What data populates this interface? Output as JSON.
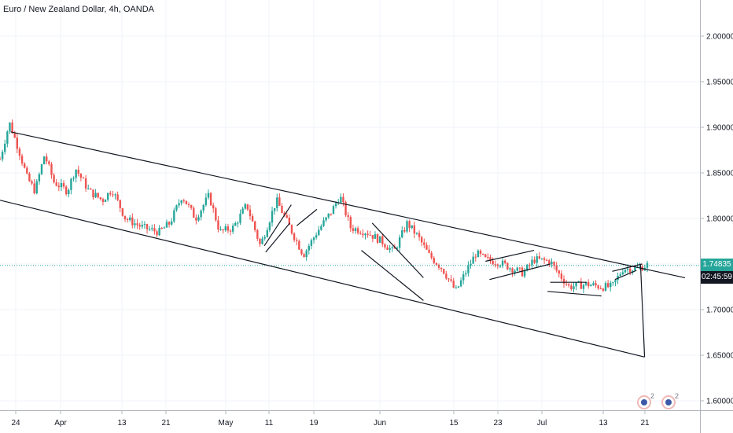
{
  "header": {
    "title": "Euro / New Zealand Dollar, 4h, OANDA"
  },
  "price_axis": {
    "ticks": [
      "2.00000",
      "1.95000",
      "1.90000",
      "1.85000",
      "1.80000",
      "1.75000",
      "1.70000",
      "1.65000",
      "1.60000"
    ],
    "tick_values": [
      2.0,
      1.95,
      1.9,
      1.85,
      1.8,
      1.75,
      1.7,
      1.65,
      1.6
    ],
    "last_price": "1.74835",
    "countdown": "02:45:59",
    "last_price_color": "#26a69a",
    "countdown_color": "#131722"
  },
  "time_axis": {
    "ticks": [
      "24",
      "Apr",
      "13",
      "21",
      "May",
      "11",
      "19",
      "Jun",
      "15",
      "23",
      "Jul",
      "13",
      "21"
    ]
  },
  "events": [
    {
      "label": "event-icon",
      "count": "2"
    },
    {
      "label": "event-icon",
      "count": "2"
    }
  ],
  "chart_data": {
    "type": "candlestick",
    "title": "Euro / New Zealand Dollar, 4h, OANDA",
    "ylim": [
      1.595,
      2.04
    ],
    "grid": true,
    "colors": {
      "up": "#26a69a",
      "down": "#ef5350",
      "trendline": "#131722",
      "price_line": "#26a69a"
    },
    "price_path": [
      {
        "t": 0.0,
        "p": 1.865
      },
      {
        "t": 0.7,
        "p": 1.905
      },
      {
        "t": 1.4,
        "p": 1.875
      },
      {
        "t": 2.0,
        "p": 1.845
      },
      {
        "t": 2.6,
        "p": 1.83
      },
      {
        "t": 3.3,
        "p": 1.87
      },
      {
        "t": 4.0,
        "p": 1.84
      },
      {
        "t": 5.0,
        "p": 1.83
      },
      {
        "t": 5.6,
        "p": 1.855
      },
      {
        "t": 6.6,
        "p": 1.83
      },
      {
        "t": 7.6,
        "p": 1.82
      },
      {
        "t": 8.3,
        "p": 1.832
      },
      {
        "t": 9.3,
        "p": 1.8
      },
      {
        "t": 10.6,
        "p": 1.79
      },
      {
        "t": 11.8,
        "p": 1.785
      },
      {
        "t": 12.6,
        "p": 1.795
      },
      {
        "t": 13.5,
        "p": 1.825
      },
      {
        "t": 14.5,
        "p": 1.8
      },
      {
        "t": 15.5,
        "p": 1.825
      },
      {
        "t": 16.3,
        "p": 1.785
      },
      {
        "t": 17.3,
        "p": 1.79
      },
      {
        "t": 18.3,
        "p": 1.815
      },
      {
        "t": 19.3,
        "p": 1.77
      },
      {
        "t": 20.5,
        "p": 1.82
      },
      {
        "t": 21.5,
        "p": 1.79
      },
      {
        "t": 22.5,
        "p": 1.76
      },
      {
        "t": 23.5,
        "p": 1.785
      },
      {
        "t": 24.6,
        "p": 1.808
      },
      {
        "t": 25.2,
        "p": 1.825
      },
      {
        "t": 26.0,
        "p": 1.79
      },
      {
        "t": 27.2,
        "p": 1.785
      },
      {
        "t": 28.3,
        "p": 1.775
      },
      {
        "t": 29.2,
        "p": 1.763
      },
      {
        "t": 30.2,
        "p": 1.795
      },
      {
        "t": 31.0,
        "p": 1.78
      },
      {
        "t": 31.8,
        "p": 1.76
      },
      {
        "t": 32.8,
        "p": 1.745
      },
      {
        "t": 33.8,
        "p": 1.72
      },
      {
        "t": 34.5,
        "p": 1.74
      },
      {
        "t": 35.3,
        "p": 1.762
      },
      {
        "t": 36.0,
        "p": 1.755
      },
      {
        "t": 37.0,
        "p": 1.752
      },
      {
        "t": 38.0,
        "p": 1.745
      },
      {
        "t": 38.8,
        "p": 1.74
      },
      {
        "t": 39.6,
        "p": 1.755
      },
      {
        "t": 40.8,
        "p": 1.753
      },
      {
        "t": 41.4,
        "p": 1.74
      },
      {
        "t": 42.2,
        "p": 1.725
      },
      {
        "t": 43.5,
        "p": 1.728
      },
      {
        "t": 44.6,
        "p": 1.725
      },
      {
        "t": 45.4,
        "p": 1.725
      },
      {
        "t": 46.2,
        "p": 1.745
      },
      {
        "t": 47.2,
        "p": 1.745
      },
      {
        "t": 48.0,
        "p": 1.749
      }
    ],
    "trendlines": [
      {
        "name": "channel-upper",
        "from": {
          "t": 0.8,
          "p": 1.895
        },
        "to": {
          "t": 50.8,
          "p": 1.735
        }
      },
      {
        "name": "channel-lower",
        "from": {
          "t": 0.0,
          "p": 1.82
        },
        "to": {
          "t": 47.8,
          "p": 1.648
        }
      },
      {
        "name": "projection-drop",
        "from": {
          "t": 47.5,
          "p": 1.749
        },
        "to": {
          "t": 47.8,
          "p": 1.648
        }
      },
      {
        "name": "may-flag-low",
        "from": {
          "t": 19.7,
          "p": 1.763
        },
        "to": {
          "t": 21.5,
          "p": 1.795
        }
      },
      {
        "name": "may-flag-high",
        "from": {
          "t": 19.6,
          "p": 1.77
        },
        "to": {
          "t": 21.6,
          "p": 1.815
        }
      },
      {
        "name": "may-flag-break",
        "from": {
          "t": 22.0,
          "p": 1.792
        },
        "to": {
          "t": 23.5,
          "p": 1.81
        }
      },
      {
        "name": "jun-fall-1",
        "from": {
          "t": 26.8,
          "p": 1.765
        },
        "to": {
          "t": 31.4,
          "p": 1.71
        }
      },
      {
        "name": "jun-fall-2",
        "from": {
          "t": 27.6,
          "p": 1.795
        },
        "to": {
          "t": 31.4,
          "p": 1.735
        }
      },
      {
        "name": "late-jun-flag-high",
        "from": {
          "t": 36.0,
          "p": 1.753
        },
        "to": {
          "t": 39.6,
          "p": 1.765
        }
      },
      {
        "name": "late-jun-flag-low",
        "from": {
          "t": 36.3,
          "p": 1.733
        },
        "to": {
          "t": 40.8,
          "p": 1.75
        }
      },
      {
        "name": "jul-box-top",
        "from": {
          "t": 40.8,
          "p": 1.73
        },
        "to": {
          "t": 43.5,
          "p": 1.73
        }
      },
      {
        "name": "jul-box-bottom",
        "from": {
          "t": 40.6,
          "p": 1.72
        },
        "to": {
          "t": 44.6,
          "p": 1.715
        }
      },
      {
        "name": "jul-wedge-top",
        "from": {
          "t": 45.4,
          "p": 1.742
        },
        "to": {
          "t": 47.6,
          "p": 1.75
        }
      },
      {
        "name": "jul-wedge-bottom",
        "from": {
          "t": 45.6,
          "p": 1.733
        },
        "to": {
          "t": 47.2,
          "p": 1.743
        }
      }
    ]
  }
}
